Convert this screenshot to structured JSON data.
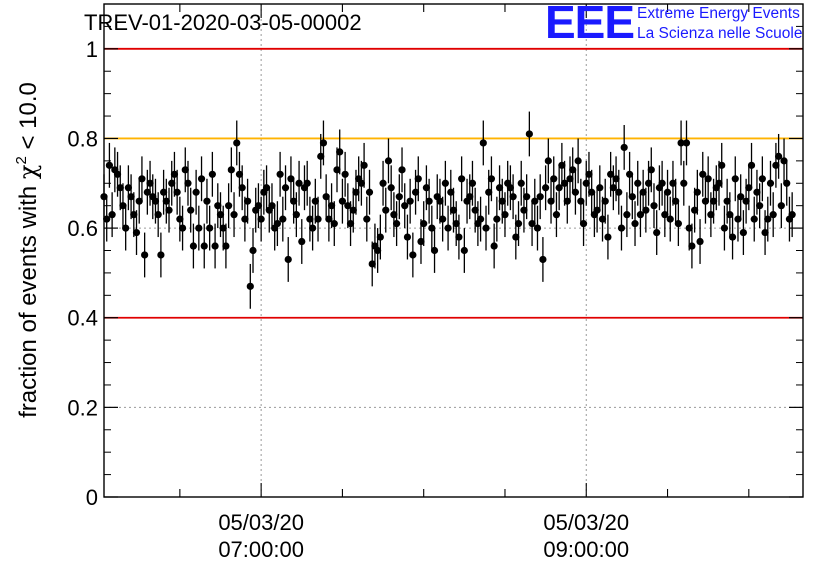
{
  "header": {
    "run_title": "TREV-01-2020-03-05-00002",
    "logo_mark": "EEE",
    "logo_line1": "Extreme Energy Events",
    "logo_line2": "La Scienza nelle Scuole",
    "logo_color": "#1a1aff"
  },
  "chart_data": {
    "type": "scatter",
    "title": "TREV-01-2020-03-05-00002",
    "ylabel": "fraction of events with χ² < 10.0",
    "ylabel_main": "fraction of events with ",
    "ylabel_chi": "χ",
    "ylabel_sup": "2",
    "ylabel_tail": " < 10.0",
    "xlabel": "",
    "xlim": [
      "2020-03-05T06:02:00",
      "2020-03-05T10:20:00"
    ],
    "ylim": [
      0,
      1.1
    ],
    "yticks": [
      0,
      0.2,
      0.4,
      0.6,
      0.8,
      1
    ],
    "ytick_labels": [
      "0",
      "0.2",
      "0.4",
      "0.6",
      "0.8",
      "1"
    ],
    "xticks": [
      {
        "t": "2020-03-05T07:00:00",
        "line1": "05/03/20",
        "line2": "07:00:00"
      },
      {
        "t": "2020-03-05T09:00:00",
        "line1": "05/03/20",
        "line2": "09:00:00"
      }
    ],
    "grid": true,
    "reference_lines": [
      {
        "y": 1.0,
        "color": "#e00000"
      },
      {
        "y": 0.8,
        "color": "#ffb300"
      },
      {
        "y": 0.4,
        "color": "#e00000"
      }
    ],
    "series": [
      {
        "color": "#000000",
        "start": "2020-03-05T06:02:00",
        "step_minutes": 1,
        "values": [
          0.67,
          0.62,
          0.74,
          0.63,
          0.73,
          0.72,
          0.69,
          0.65,
          0.6,
          0.69,
          0.67,
          0.63,
          0.59,
          0.66,
          0.71,
          0.54,
          0.68,
          0.7,
          0.67,
          0.66,
          0.63,
          0.54,
          0.68,
          0.66,
          0.64,
          0.7,
          0.72,
          0.68,
          0.62,
          0.6,
          0.73,
          0.7,
          0.64,
          0.56,
          0.68,
          0.6,
          0.71,
          0.56,
          0.66,
          0.6,
          0.72,
          0.56,
          0.65,
          0.63,
          0.6,
          0.56,
          0.65,
          0.73,
          0.63,
          0.79,
          0.72,
          0.69,
          0.62,
          0.66,
          0.47,
          0.55,
          0.64,
          0.65,
          0.62,
          0.68,
          0.69,
          0.64,
          0.65,
          0.6,
          0.61,
          0.72,
          0.62,
          0.69,
          0.53,
          0.71,
          0.66,
          0.63,
          0.7,
          0.57,
          0.69,
          0.7,
          0.62,
          0.6,
          0.66,
          0.62,
          0.76,
          0.79,
          0.67,
          0.62,
          0.65,
          0.61,
          0.73,
          0.77,
          0.66,
          0.72,
          0.65,
          0.61,
          0.64,
          0.68,
          0.71,
          0.7,
          0.74,
          0.62,
          0.68,
          0.52,
          0.56,
          0.55,
          0.58,
          0.7,
          0.64,
          0.75,
          0.69,
          0.63,
          0.61,
          0.67,
          0.73,
          0.65,
          0.58,
          0.66,
          0.54,
          0.68,
          0.71,
          0.57,
          0.61,
          0.69,
          0.66,
          0.6,
          0.55,
          0.67,
          0.66,
          0.62,
          0.7,
          0.6,
          0.68,
          0.64,
          0.61,
          0.58,
          0.71,
          0.55,
          0.66,
          0.67,
          0.7,
          0.64,
          0.61,
          0.62,
          0.79,
          0.6,
          0.68,
          0.71,
          0.56,
          0.62,
          0.69,
          0.66,
          0.63,
          0.7,
          0.69,
          0.67,
          0.58,
          0.61,
          0.7,
          0.64,
          0.67,
          0.81,
          0.61,
          0.66,
          0.6,
          0.67,
          0.53,
          0.69,
          0.75,
          0.66,
          0.71,
          0.63,
          0.69,
          0.74,
          0.7,
          0.66,
          0.71,
          0.73,
          0.68,
          0.75,
          0.66,
          0.61,
          0.7,
          0.72,
          0.68,
          0.63,
          0.64,
          0.69,
          0.62,
          0.66,
          0.58,
          0.72,
          0.69,
          0.71,
          0.68,
          0.6,
          0.78,
          0.63,
          0.72,
          0.67,
          0.61,
          0.7,
          0.63,
          0.68,
          0.64,
          0.7,
          0.73,
          0.65,
          0.59,
          0.69,
          0.7,
          0.63,
          0.68,
          0.62,
          0.7,
          0.66,
          0.61,
          0.79,
          0.7,
          0.79,
          0.6,
          0.56,
          0.64,
          0.68,
          0.57,
          0.72,
          0.66,
          0.71,
          0.63,
          0.66,
          0.69,
          0.7,
          0.74,
          0.6,
          0.66,
          0.63,
          0.58,
          0.71,
          0.62,
          0.67,
          0.59,
          0.66,
          0.69,
          0.74,
          0.62,
          0.68,
          0.65,
          0.71,
          0.59,
          0.62,
          0.7,
          0.63,
          0.74,
          0.76,
          0.65,
          0.75,
          0.7,
          0.62,
          0.63
        ],
        "err": [
          0.05
        ]
      }
    ]
  }
}
